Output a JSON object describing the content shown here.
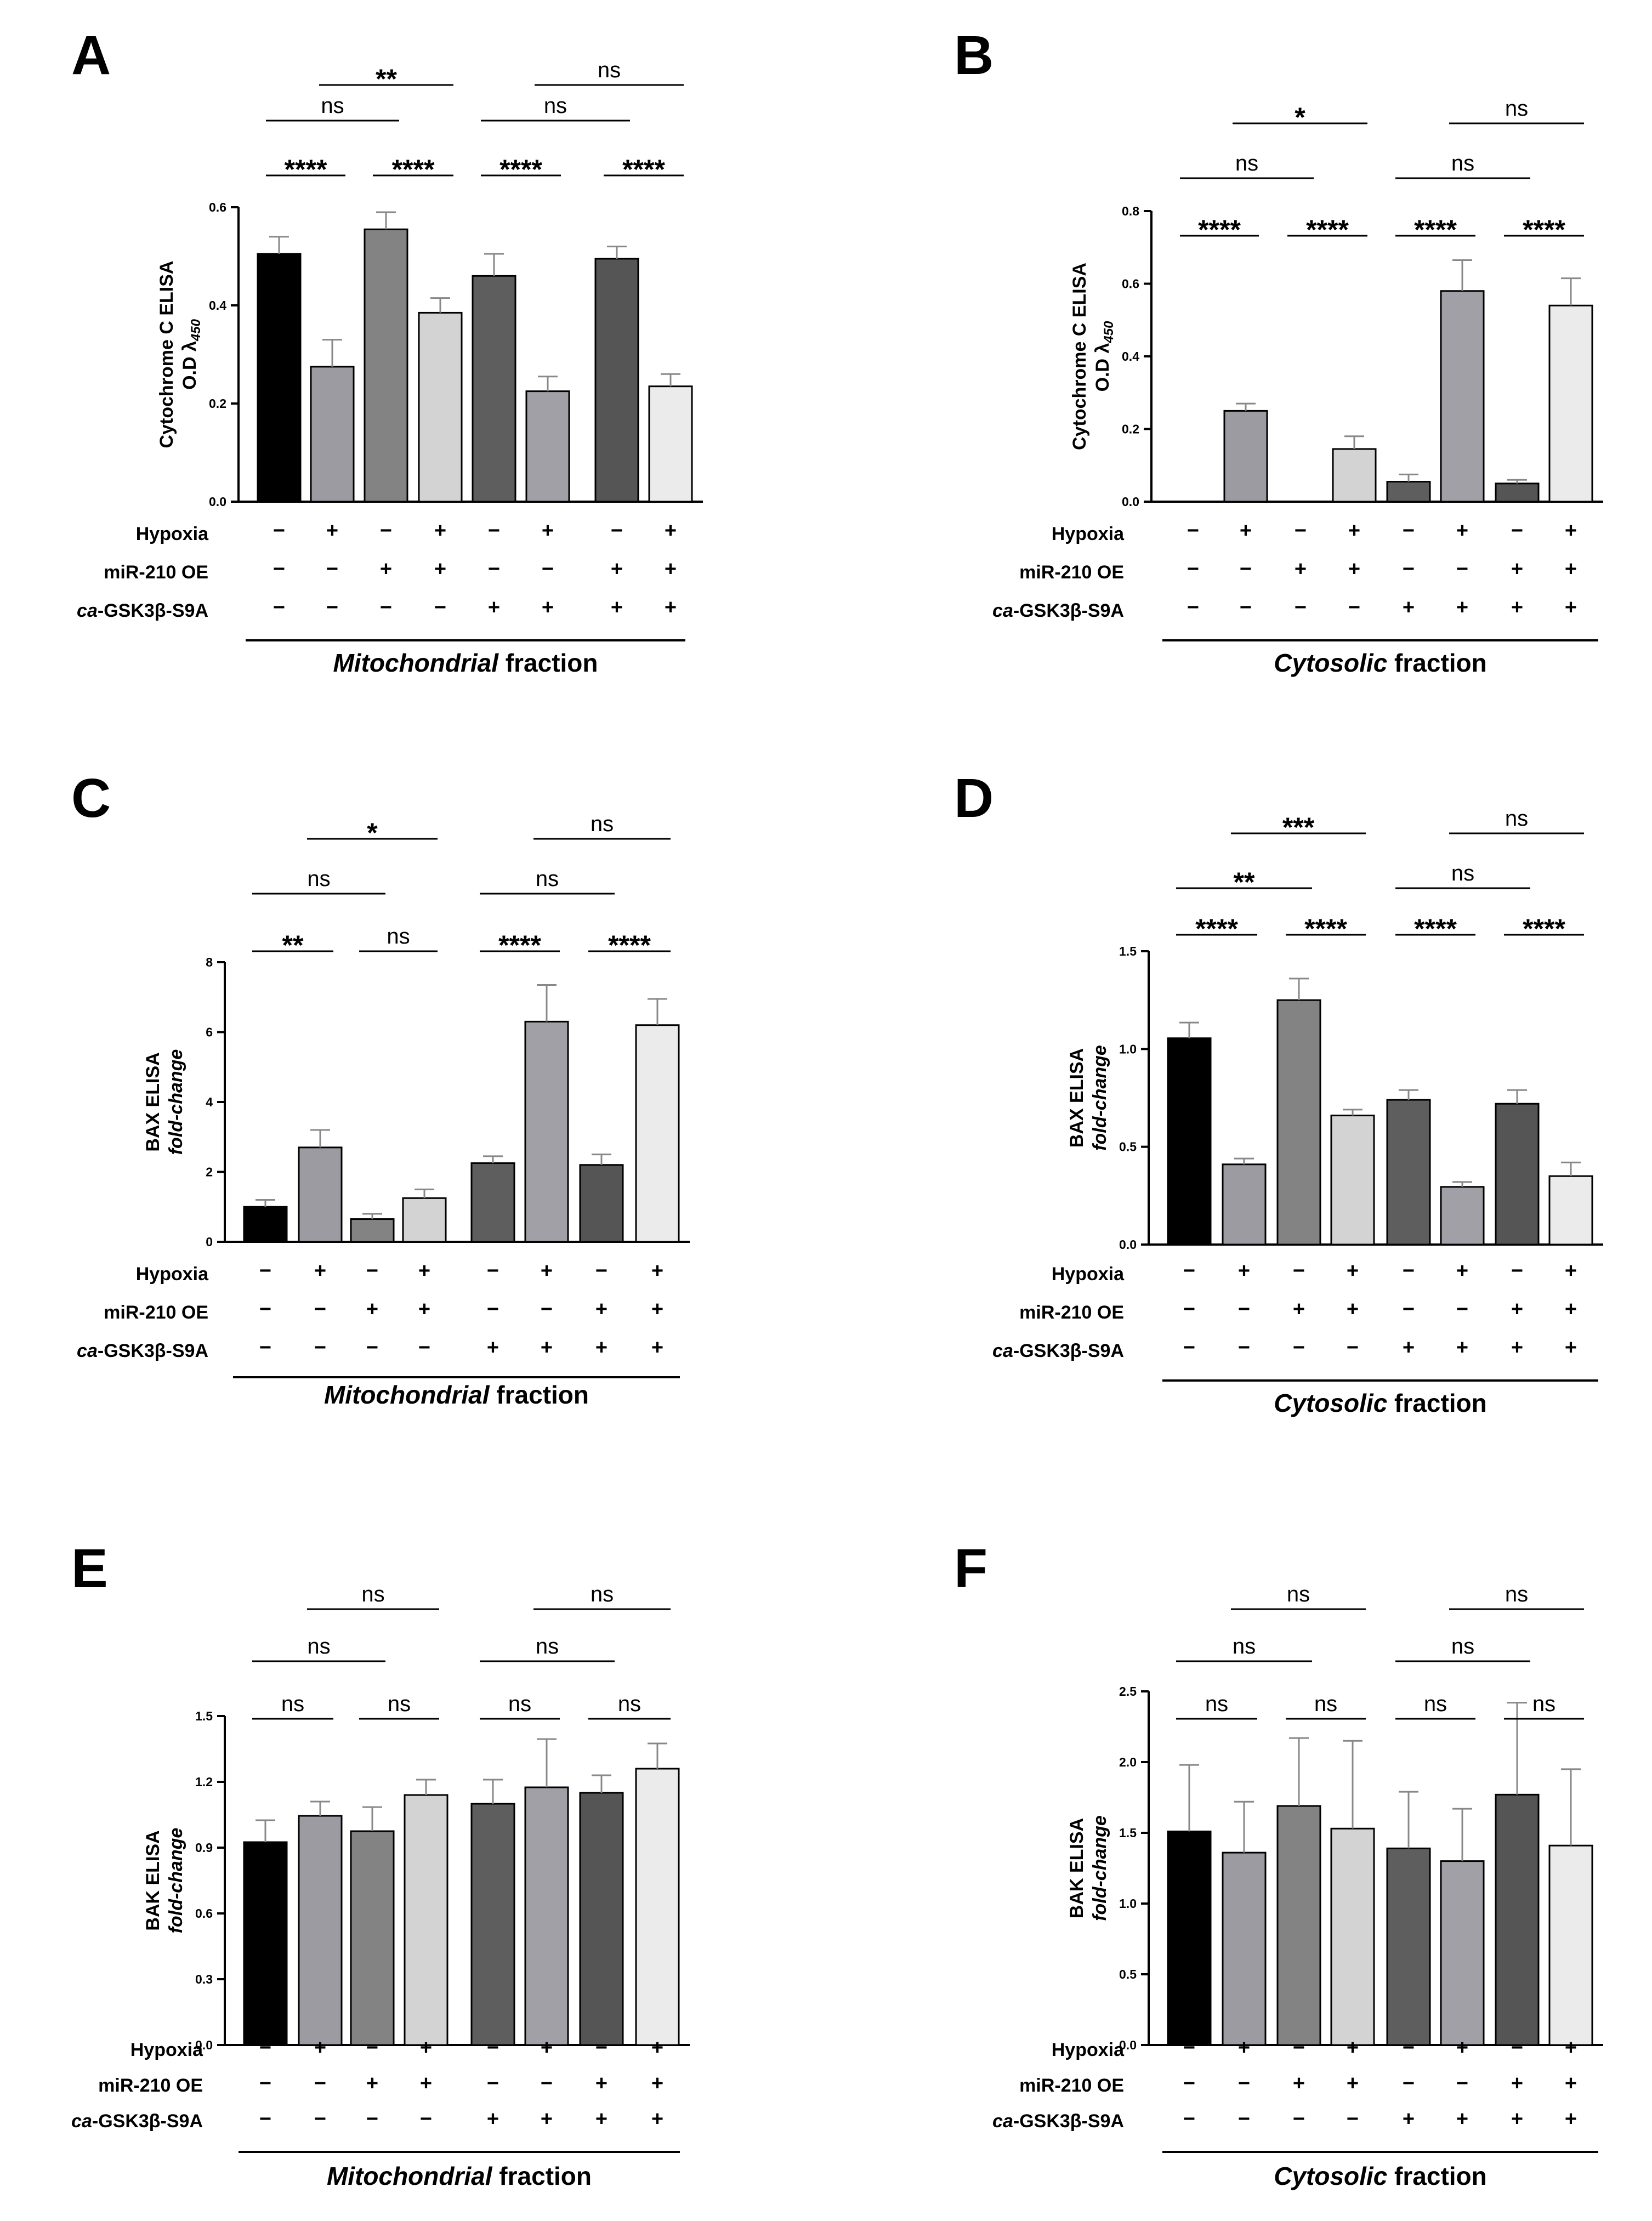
{
  "colors": {
    "bars": [
      "#000000",
      "#9b9ba1",
      "#838383",
      "#d3d3d3",
      "#5e5e5e",
      "#a0a0a6",
      "#555555",
      "#ebebeb"
    ],
    "error": "#888888",
    "bracket": "#000000"
  },
  "condition_rows": {
    "labels": [
      "Hypoxia",
      "miR-210 OE",
      "ca-GSK3β-S9A"
    ],
    "label_italic_prefix": "ca",
    "label_rest": "-GSK3β-S9A",
    "signs": [
      [
        "−",
        "+",
        "−",
        "+",
        "−",
        "+",
        "−",
        "+"
      ],
      [
        "−",
        "−",
        "+",
        "+",
        "−",
        "−",
        "+",
        "+"
      ],
      [
        "−",
        "−",
        "−",
        "−",
        "+",
        "+",
        "+",
        "+"
      ]
    ]
  },
  "chart_data": [
    {
      "panel": "A",
      "type": "bar",
      "ylabel_line1": "Cytochrome C  ELISA",
      "ylabel_line2": "O.D λ",
      "ylabel_subscript": "450",
      "ylim": [
        0,
        0.6
      ],
      "yticks": [
        "0.0",
        "0.2",
        "0.4",
        "0.6"
      ],
      "ytick_values": [
        0,
        0.2,
        0.4,
        0.6
      ],
      "values": [
        0.505,
        0.275,
        0.555,
        0.385,
        0.46,
        0.225,
        0.495,
        0.235
      ],
      "errors": [
        0.035,
        0.055,
        0.035,
        0.03,
        0.045,
        0.03,
        0.025,
        0.025
      ],
      "fraction_italic": "Mitochondrial",
      "fraction_rest": " fraction",
      "sig": [
        {
          "from": 0,
          "to": 1,
          "level": 0,
          "label": "****"
        },
        {
          "from": 2,
          "to": 3,
          "level": 0,
          "label": "****"
        },
        {
          "from": 4,
          "to": 5,
          "level": 0,
          "label": "****"
        },
        {
          "from": 6,
          "to": 7,
          "level": 0,
          "label": "****"
        },
        {
          "from": 0,
          "to": 2,
          "level": 1,
          "label": "ns"
        },
        {
          "from": 4,
          "to": 6,
          "level": 1,
          "label": "ns"
        },
        {
          "from": 1,
          "to": 3,
          "level": 2,
          "label": "**"
        },
        {
          "from": 5,
          "to": 7,
          "level": 2,
          "label": "ns"
        }
      ]
    },
    {
      "panel": "B",
      "type": "bar",
      "ylabel_line1": "Cytochrome C  ELISA",
      "ylabel_line2": "O.D λ",
      "ylabel_subscript": "450",
      "ylim": [
        0,
        0.8
      ],
      "yticks": [
        "0.0",
        "0.2",
        "0.4",
        "0.6",
        "0.8"
      ],
      "ytick_values": [
        0,
        0.2,
        0.4,
        0.6,
        0.8
      ],
      "values": [
        0.0,
        0.25,
        0.0,
        0.145,
        0.055,
        0.58,
        0.05,
        0.54
      ],
      "errors": [
        0,
        0.02,
        0,
        0.035,
        0.02,
        0.085,
        0.01,
        0.075
      ],
      "fraction_italic": "Cytosolic",
      "fraction_rest": " fraction",
      "sig": [
        {
          "from": 0,
          "to": 1,
          "level": 0,
          "label": "****"
        },
        {
          "from": 2,
          "to": 3,
          "level": 0,
          "label": "****"
        },
        {
          "from": 4,
          "to": 5,
          "level": 0,
          "label": "****"
        },
        {
          "from": 6,
          "to": 7,
          "level": 0,
          "label": "****"
        },
        {
          "from": 0,
          "to": 2,
          "level": 1,
          "label": "ns"
        },
        {
          "from": 4,
          "to": 6,
          "level": 1,
          "label": "ns"
        },
        {
          "from": 1,
          "to": 3,
          "level": 2,
          "label": "*"
        },
        {
          "from": 5,
          "to": 7,
          "level": 2,
          "label": "ns"
        }
      ]
    },
    {
      "panel": "C",
      "type": "bar",
      "ylabel_line1": "BAX  ELISA",
      "ylabel_line2": "fold-change",
      "ylim": [
        0,
        8
      ],
      "yticks": [
        "0",
        "2",
        "4",
        "6",
        "8"
      ],
      "ytick_values": [
        0,
        2,
        4,
        6,
        8
      ],
      "values": [
        1.0,
        2.7,
        0.65,
        1.25,
        2.25,
        6.3,
        2.2,
        6.2
      ],
      "errors": [
        0.2,
        0.5,
        0.15,
        0.25,
        0.2,
        1.05,
        0.3,
        0.75
      ],
      "fraction_italic": "Mitochondrial",
      "fraction_rest": " fraction",
      "sig": [
        {
          "from": 0,
          "to": 1,
          "level": 0,
          "label": "**"
        },
        {
          "from": 2,
          "to": 3,
          "level": 0,
          "label": "ns"
        },
        {
          "from": 4,
          "to": 5,
          "level": 0,
          "label": "****"
        },
        {
          "from": 6,
          "to": 7,
          "level": 0,
          "label": "****"
        },
        {
          "from": 0,
          "to": 2,
          "level": 1,
          "label": "ns"
        },
        {
          "from": 4,
          "to": 6,
          "level": 1,
          "label": "ns"
        },
        {
          "from": 1,
          "to": 3,
          "level": 2,
          "label": "*"
        },
        {
          "from": 5,
          "to": 7,
          "level": 2,
          "label": "ns"
        }
      ]
    },
    {
      "panel": "D",
      "type": "bar",
      "ylabel_line1": "BAX  ELISA",
      "ylabel_line2": "fold-change",
      "ylim": [
        0,
        1.5
      ],
      "yticks": [
        "0.0",
        "0.5",
        "1.0",
        "1.5"
      ],
      "ytick_values": [
        0,
        0.5,
        1.0,
        1.5
      ],
      "values": [
        1.055,
        0.41,
        1.25,
        0.66,
        0.74,
        0.295,
        0.72,
        0.35
      ],
      "errors": [
        0.08,
        0.03,
        0.11,
        0.03,
        0.05,
        0.025,
        0.07,
        0.07
      ],
      "fraction_italic": "Cytosolic",
      "fraction_rest": " fraction",
      "sig": [
        {
          "from": 0,
          "to": 1,
          "level": 0,
          "label": "****"
        },
        {
          "from": 2,
          "to": 3,
          "level": 0,
          "label": "****"
        },
        {
          "from": 4,
          "to": 5,
          "level": 0,
          "label": "****"
        },
        {
          "from": 6,
          "to": 7,
          "level": 0,
          "label": "****"
        },
        {
          "from": 0,
          "to": 2,
          "level": 1,
          "label": "**"
        },
        {
          "from": 4,
          "to": 6,
          "level": 1,
          "label": "ns"
        },
        {
          "from": 1,
          "to": 3,
          "level": 2,
          "label": "***"
        },
        {
          "from": 5,
          "to": 7,
          "level": 2,
          "label": "ns"
        }
      ]
    },
    {
      "panel": "E",
      "type": "bar",
      "ylabel_line1": "BAK  ELISA",
      "ylabel_line2": "fold-change",
      "ylim": [
        0,
        1.5
      ],
      "yticks": [
        "0.0",
        "0.3",
        "0.6",
        "0.9",
        "1.2",
        "1.5"
      ],
      "ytick_values": [
        0,
        0.3,
        0.6,
        0.9,
        1.2,
        1.5
      ],
      "values": [
        0.925,
        1.045,
        0.975,
        1.14,
        1.1,
        1.175,
        1.15,
        1.26
      ],
      "errors": [
        0.1,
        0.065,
        0.11,
        0.07,
        0.11,
        0.22,
        0.08,
        0.115
      ],
      "fraction_italic": "Mitochondrial",
      "fraction_rest": " fraction",
      "sig": [
        {
          "from": 0,
          "to": 1,
          "level": 0,
          "label": "ns"
        },
        {
          "from": 2,
          "to": 3,
          "level": 0,
          "label": "ns"
        },
        {
          "from": 4,
          "to": 5,
          "level": 0,
          "label": "ns"
        },
        {
          "from": 6,
          "to": 7,
          "level": 0,
          "label": "ns"
        },
        {
          "from": 0,
          "to": 2,
          "level": 1,
          "label": "ns"
        },
        {
          "from": 4,
          "to": 6,
          "level": 1,
          "label": "ns"
        },
        {
          "from": 1,
          "to": 3,
          "level": 2,
          "label": "ns"
        },
        {
          "from": 5,
          "to": 7,
          "level": 2,
          "label": "ns"
        }
      ]
    },
    {
      "panel": "F",
      "type": "bar",
      "ylabel_line1": "BAK  ELISA",
      "ylabel_line2": "fold-change",
      "ylim": [
        0,
        2.5
      ],
      "yticks": [
        "0.0",
        "0.5",
        "1.0",
        "1.5",
        "2.0",
        "2.5"
      ],
      "ytick_values": [
        0,
        0.5,
        1.0,
        1.5,
        2.0,
        2.5
      ],
      "values": [
        1.51,
        1.36,
        1.69,
        1.53,
        1.39,
        1.3,
        1.77,
        1.41
      ],
      "errors": [
        0.47,
        0.36,
        0.48,
        0.62,
        0.4,
        0.37,
        0.65,
        0.54
      ],
      "fraction_italic": "Cytosolic",
      "fraction_rest": " fraction",
      "sig": [
        {
          "from": 0,
          "to": 1,
          "level": 0,
          "label": "ns"
        },
        {
          "from": 2,
          "to": 3,
          "level": 0,
          "label": "ns"
        },
        {
          "from": 4,
          "to": 5,
          "level": 0,
          "label": "ns"
        },
        {
          "from": 6,
          "to": 7,
          "level": 0,
          "label": "ns"
        },
        {
          "from": 0,
          "to": 2,
          "level": 1,
          "label": "ns"
        },
        {
          "from": 4,
          "to": 6,
          "level": 1,
          "label": "ns"
        },
        {
          "from": 1,
          "to": 3,
          "level": 2,
          "label": "ns"
        },
        {
          "from": 5,
          "to": 7,
          "level": 2,
          "label": "ns"
        }
      ]
    }
  ]
}
